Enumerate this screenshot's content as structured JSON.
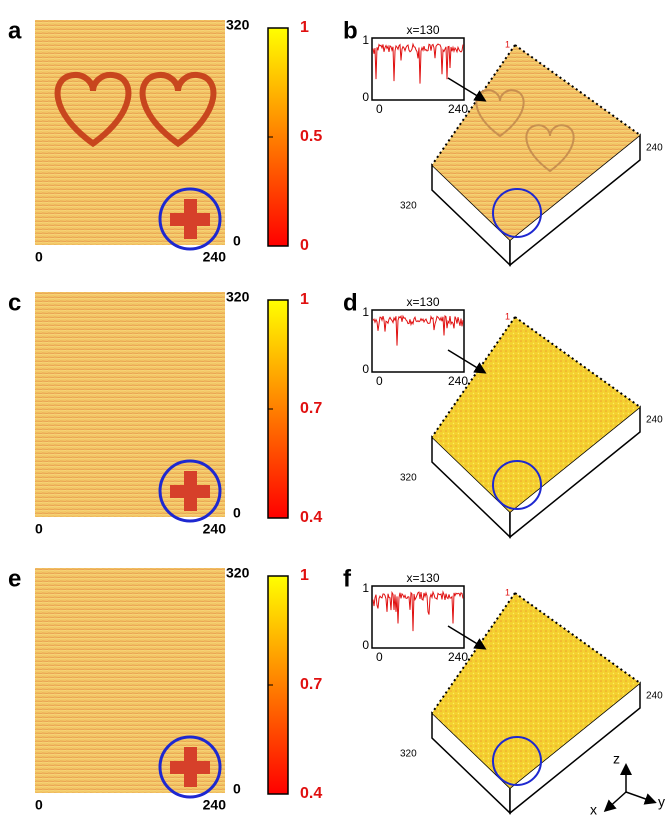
{
  "rows": [
    {
      "image_label": "a",
      "image_yticks": [
        320,
        0
      ],
      "image_xticks": [
        0,
        240
      ],
      "colorbar_ticks": [
        1,
        0.5,
        0
      ],
      "surface_label": "b",
      "inset_title": "x=130",
      "inset_yticks": [
        1,
        0
      ],
      "inset_xticks": [
        0,
        240
      ],
      "surface_ticks": [
        1,
        240,
        320
      ]
    },
    {
      "image_label": "c",
      "image_yticks": [
        320,
        0
      ],
      "image_xticks": [
        0,
        240
      ],
      "colorbar_ticks": [
        1,
        0.7,
        0.4
      ],
      "surface_label": "d",
      "inset_title": "x=130",
      "inset_yticks": [
        1,
        0
      ],
      "inset_xticks": [
        0,
        240
      ],
      "surface_ticks": [
        1,
        240,
        320
      ]
    },
    {
      "image_label": "e",
      "image_yticks": [
        320,
        0
      ],
      "image_xticks": [
        0,
        240
      ],
      "colorbar_ticks": [
        1,
        0.7,
        0.4
      ],
      "surface_label": "f",
      "inset_title": "x=130",
      "inset_yticks": [
        1,
        0
      ],
      "inset_xticks": [
        0,
        240
      ],
      "surface_ticks": [
        1,
        240,
        320
      ]
    }
  ],
  "colorbar_colors": [
    "#ffff00",
    "#ff0000"
  ],
  "axes_labels": [
    "z",
    "x",
    "y"
  ]
}
